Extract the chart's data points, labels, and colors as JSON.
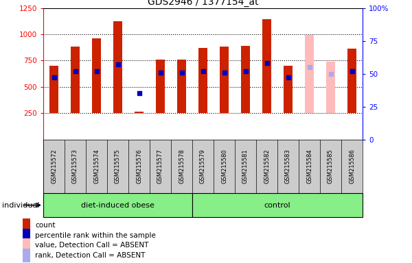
{
  "title": "GDS2946 / 1377154_at",
  "samples": [
    "GSM215572",
    "GSM215573",
    "GSM215574",
    "GSM215575",
    "GSM215576",
    "GSM215577",
    "GSM215578",
    "GSM215579",
    "GSM215580",
    "GSM215581",
    "GSM215582",
    "GSM215583",
    "GSM215584",
    "GSM215585",
    "GSM215586"
  ],
  "counts": [
    700,
    880,
    960,
    1120,
    265,
    760,
    760,
    870,
    880,
    890,
    1140,
    700,
    null,
    null,
    860
  ],
  "percentile_ranks": [
    47,
    52,
    52,
    57,
    35,
    51,
    51,
    52,
    51,
    52,
    58,
    47,
    null,
    null,
    52
  ],
  "absent_counts": [
    null,
    null,
    null,
    null,
    null,
    null,
    null,
    null,
    null,
    null,
    null,
    null,
    990,
    740,
    null
  ],
  "absent_ranks": [
    null,
    null,
    null,
    null,
    null,
    null,
    null,
    null,
    null,
    null,
    null,
    null,
    55,
    50,
    null
  ],
  "group_spans": [
    {
      "name": "diet-induced obese",
      "start": 0,
      "end": 6
    },
    {
      "name": "control",
      "start": 7,
      "end": 14
    }
  ],
  "ylim_left": [
    0,
    1250
  ],
  "ylim_right": [
    0,
    100
  ],
  "left_ticks": [
    250,
    500,
    750,
    1000,
    1250
  ],
  "right_ticks": [
    0,
    25,
    50,
    75,
    100
  ],
  "bar_color": "#cc2200",
  "dot_color": "#0000bb",
  "absent_bar_color": "#ffbbbb",
  "absent_dot_color": "#aaaaee",
  "legend_items": [
    {
      "label": "count",
      "color": "#cc2200"
    },
    {
      "label": "percentile rank within the sample",
      "color": "#0000bb"
    },
    {
      "label": "value, Detection Call = ABSENT",
      "color": "#ffbbbb"
    },
    {
      "label": "rank, Detection Call = ABSENT",
      "color": "#aaaaee"
    }
  ]
}
